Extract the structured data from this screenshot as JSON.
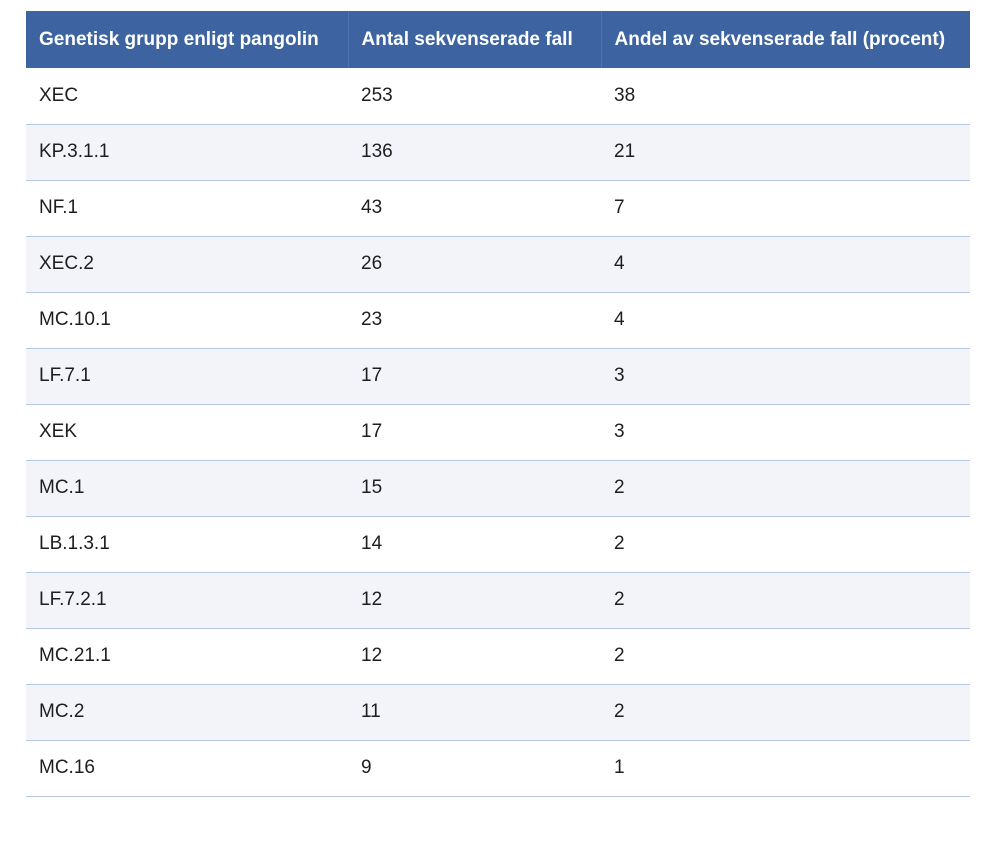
{
  "table": {
    "headers": [
      "Genetisk grupp enligt pangolin",
      "Antal sekvenserade fall",
      "Andel av sekvenserade fall (procent)"
    ],
    "rows": [
      [
        "XEC",
        "253",
        "38"
      ],
      [
        "KP.3.1.1",
        "136",
        "21"
      ],
      [
        "NF.1",
        "43",
        "7"
      ],
      [
        "XEC.2",
        "26",
        "4"
      ],
      [
        "MC.10.1",
        "23",
        "4"
      ],
      [
        "LF.7.1",
        "17",
        "3"
      ],
      [
        "XEK",
        "17",
        "3"
      ],
      [
        "MC.1",
        "15",
        "2"
      ],
      [
        "LB.1.3.1",
        "14",
        "2"
      ],
      [
        "LF.7.2.1",
        "12",
        "2"
      ],
      [
        "MC.21.1",
        "12",
        "2"
      ],
      [
        "MC.2",
        "11",
        "2"
      ],
      [
        "MC.16",
        "9",
        "1"
      ]
    ]
  },
  "colors": {
    "header_bg": "#3d64a0",
    "header_text": "#ffffff",
    "row_alt_bg": "#f2f4f9",
    "row_border": "#b7c7de"
  }
}
